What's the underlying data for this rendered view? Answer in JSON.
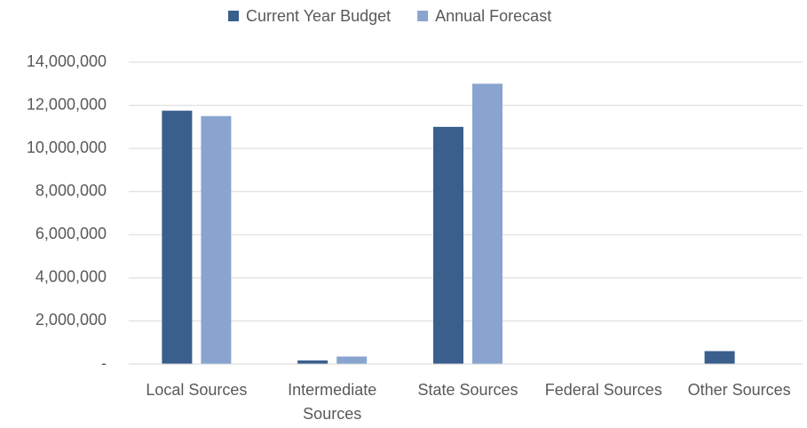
{
  "chart_data": {
    "type": "bar",
    "categories": [
      "Local Sources",
      "Intermediate Sources",
      "State Sources",
      "Federal Sources",
      "Other Sources"
    ],
    "series": [
      {
        "name": "Current Year Budget",
        "color": "#3a5f8d",
        "values": [
          11750000,
          170000,
          11000000,
          0,
          600000
        ]
      },
      {
        "name": "Annual Forecast",
        "color": "#89a5cf",
        "values": [
          11500000,
          350000,
          13000000,
          0,
          0
        ]
      }
    ],
    "ylim": [
      0,
      14000000
    ],
    "yticks": [
      {
        "value": 0,
        "label": "-"
      },
      {
        "value": 2000000,
        "label": "2,000,000"
      },
      {
        "value": 4000000,
        "label": "4,000,000"
      },
      {
        "value": 6000000,
        "label": "6,000,000"
      },
      {
        "value": 8000000,
        "label": "8,000,000"
      },
      {
        "value": 10000000,
        "label": "10,000,000"
      },
      {
        "value": 12000000,
        "label": "12,000,000"
      },
      {
        "value": 14000000,
        "label": "14,000,000"
      }
    ],
    "grid": true,
    "legend": "top"
  }
}
